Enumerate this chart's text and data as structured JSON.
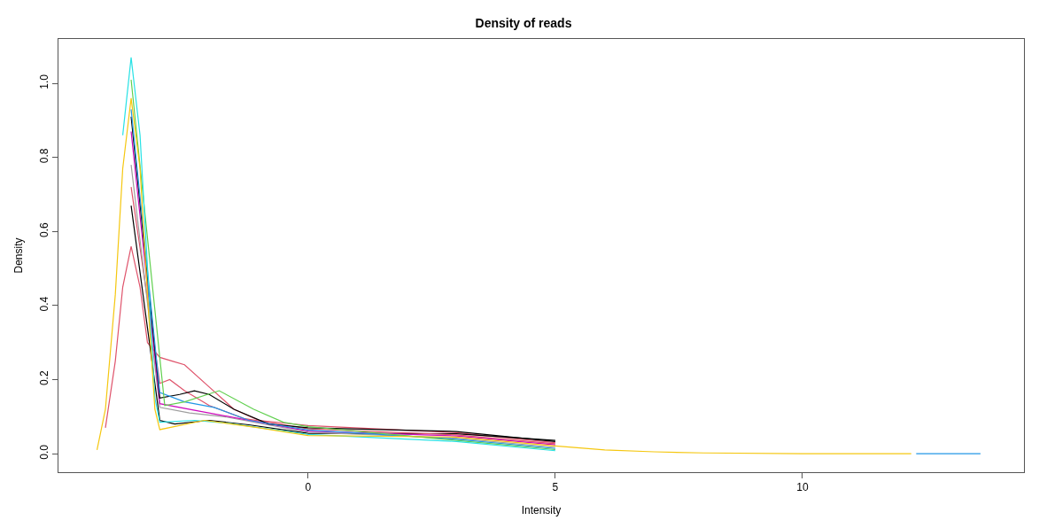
{
  "chart_data": {
    "type": "line",
    "title": "Density of reads",
    "xlabel": "Intensity",
    "ylabel": "Density",
    "xlim": [
      -5.05,
      14.48
    ],
    "xticks": [
      0,
      5,
      10
    ],
    "ylim": [
      -0.05,
      1.12
    ],
    "yticks": [
      {
        "value": 0,
        "label": "0.0"
      },
      {
        "value": 0.2,
        "label": "0.2"
      },
      {
        "value": 0.4,
        "label": "0.4"
      },
      {
        "value": 0.6,
        "label": "0.6"
      },
      {
        "value": 0.8,
        "label": "0.8"
      },
      {
        "value": 1,
        "label": "1.0"
      }
    ],
    "marker": "none",
    "line_style": "solid",
    "series": [
      {
        "color": "#df536b",
        "x": [
          -4.1,
          -3.9,
          -3.75,
          -3.58,
          -3.4,
          -3.25,
          -3.0,
          -2.75,
          -2.5,
          -2.0,
          -1.5,
          -1.0,
          0,
          3,
          5
        ],
        "values": [
          0.07,
          0.25,
          0.45,
          0.56,
          0.45,
          0.3,
          0.26,
          0.25,
          0.24,
          0.18,
          0.12,
          0.09,
          0.076,
          0.057,
          0.03
        ]
      },
      {
        "color": "#000000",
        "x": [
          -3.58,
          -3.0,
          -2.7,
          -2.0,
          -1.2,
          0,
          3,
          5
        ],
        "values": [
          0.67,
          0.09,
          0.08,
          0.09,
          0.078,
          0.055,
          0.054,
          0.036
        ]
      },
      {
        "color": "#df536b",
        "x": [
          -3.58,
          -3.0,
          -2.8,
          -2.5,
          -2.0,
          -1.3,
          0,
          3,
          5
        ],
        "values": [
          0.72,
          0.19,
          0.2,
          0.17,
          0.13,
          0.095,
          0.067,
          0.051,
          0.027
        ]
      },
      {
        "color": "#9e9e9e",
        "x": [
          -3.58,
          -3.0,
          -2.4,
          -1.7,
          0,
          3,
          5
        ],
        "values": [
          0.78,
          0.125,
          0.11,
          0.1,
          0.058,
          0.042,
          0.017
        ]
      },
      {
        "color": "#cd0bbc",
        "x": [
          -3.58,
          -3.0,
          -2.2,
          -1.4,
          0,
          3,
          5
        ],
        "values": [
          0.87,
          0.135,
          0.115,
          0.095,
          0.061,
          0.048,
          0.024
        ]
      },
      {
        "color": "#000000",
        "x": [
          -3.58,
          -3.0,
          -2.6,
          -2.3,
          -2.0,
          -1.5,
          -0.8,
          0,
          3,
          5
        ],
        "values": [
          0.91,
          0.15,
          0.16,
          0.17,
          0.16,
          0.12,
          0.08,
          0.07,
          0.06,
          0.033
        ]
      },
      {
        "color": "#2297e6",
        "x": [
          -3.58,
          -3.0,
          -2.5,
          -1.9,
          -1.2,
          0,
          3,
          5,
          8,
          12.3,
          13.6
        ],
        "values": [
          0.93,
          0.165,
          0.14,
          0.125,
          0.09,
          0.064,
          0.039,
          0.014,
          null,
          0,
          0
        ]
      },
      {
        "color": "#61d04f",
        "x": [
          -3.58,
          -2.9,
          -2.5,
          -1.8,
          -1.1,
          -0.5,
          0,
          3,
          5
        ],
        "values": [
          1.01,
          0.13,
          0.14,
          0.17,
          0.12,
          0.085,
          0.073,
          0.036,
          0.011
        ]
      },
      {
        "color": "#28e2e5",
        "x": [
          -3.75,
          -3.58,
          -3.4,
          -3.1,
          -3.0,
          -2.3,
          -1.6,
          0,
          3,
          5
        ],
        "values": [
          0.86,
          1.07,
          0.86,
          0.15,
          0.085,
          0.09,
          0.082,
          0.052,
          0.033,
          0.008
        ]
      },
      {
        "color": "#f5c710",
        "x": [
          -4.27,
          -4.1,
          -3.9,
          -3.75,
          -3.58,
          -3.4,
          -3.25,
          -3.1,
          -3.0,
          -2.1,
          -1.0,
          0,
          3,
          5,
          6,
          7,
          8,
          10,
          12.2
        ],
        "values": [
          0.01,
          0.12,
          0.43,
          0.77,
          0.96,
          0.77,
          0.43,
          0.12,
          0.065,
          0.09,
          0.07,
          0.049,
          0.045,
          0.021,
          0.01,
          0.005,
          0.002,
          0,
          0
        ]
      }
    ]
  }
}
